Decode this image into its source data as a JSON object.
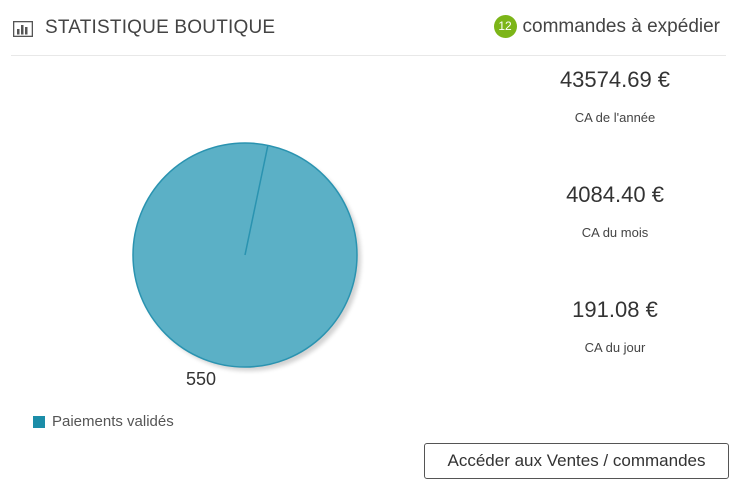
{
  "header": {
    "title": "STATISTIQUE BOUTIQUE",
    "pending_count": "12",
    "pending_label": "commandes à expédier",
    "icon": "bar-chart-icon"
  },
  "chart_data": {
    "type": "pie",
    "slices": [
      {
        "label": "Paiements validés",
        "value": 550,
        "color": "#5bb0c6"
      }
    ],
    "data_labels": [
      "550"
    ],
    "legend": [
      "Paiements validés"
    ],
    "legend_placement": "bottom-left"
  },
  "legend": {
    "items": [
      {
        "label": "Paiements validés",
        "color": "#1b8da8"
      }
    ]
  },
  "stats": [
    {
      "value": "43574.69 €",
      "label": "CA de l'année"
    },
    {
      "value": "4084.40 €",
      "label": "CA du mois"
    },
    {
      "value": "191.08 €",
      "label": "CA du jour"
    }
  ],
  "actions": {
    "orders_button": "Accéder aux Ventes / commandes"
  },
  "colors": {
    "badge": "#7cb518",
    "pie_fill": "#5bb0c6",
    "pie_stroke": "#2a93b0",
    "legend_swatch": "#1b8da8"
  }
}
